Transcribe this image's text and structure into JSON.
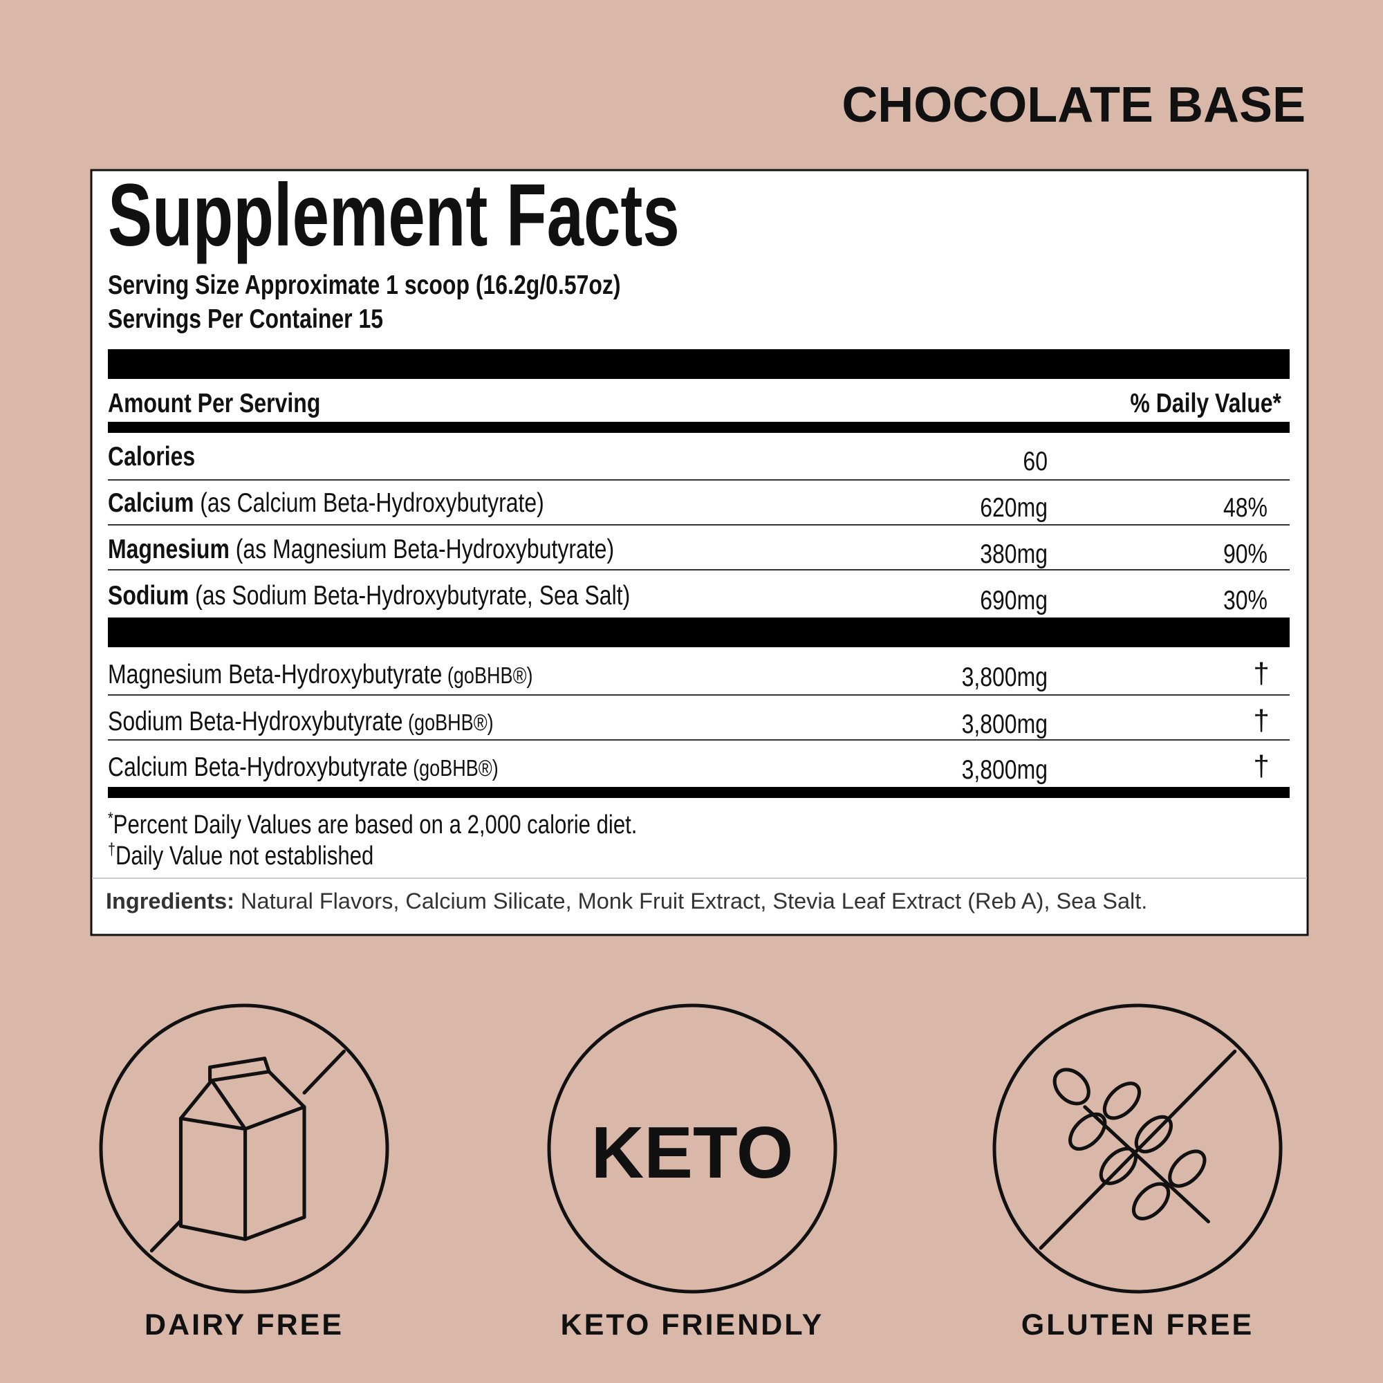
{
  "header": {
    "title": "CHOCOLATE BASE"
  },
  "facts": {
    "title": "Supplement Facts",
    "serving_size": "Serving Size Approximate 1 scoop (16.2g/0.57oz)",
    "servings": "Servings Per Container 15",
    "amount_header": "Amount Per Serving",
    "dv_header": "% Daily Value*",
    "rows": [
      {
        "name": "Calories",
        "amount": "60"
      },
      {
        "name": "Calcium",
        "detail": "(as Calcium Beta-Hydroxybutyrate)",
        "amount": "620mg",
        "dv": "48%"
      },
      {
        "name": "Magnesium",
        "detail": "(as Magnesium Beta-Hydroxybutyrate)",
        "amount": "380mg",
        "dv": "90%"
      },
      {
        "name": "Sodium",
        "detail": "(as Sodium Beta-Hydroxybutyrate, Sea Salt)",
        "amount": "690mg",
        "dv": "30%"
      }
    ],
    "blend_rows": [
      {
        "name": "Magnesium Beta-Hydroxybutyrate",
        "mark": "(goBHB®)",
        "amount": "3,800mg",
        "dv": "†"
      },
      {
        "name": "Sodium Beta-Hydroxybutyrate",
        "mark": "(goBHB®)",
        "amount": "3,800mg",
        "dv": "†"
      },
      {
        "name": "Calcium Beta-Hydroxybutyrate",
        "mark": "(goBHB®)",
        "amount": "3,800mg",
        "dv": "†"
      }
    ],
    "footnotes": [
      {
        "symbol": "*",
        "text": "Percent Daily Values are based on a 2,000 calorie diet."
      },
      {
        "symbol": "†",
        "text": "Daily Value not established"
      }
    ],
    "ingredients_label": "Ingredients:",
    "ingredients": "Natural Flavors, Calcium Silicate, Monk Fruit Extract, Stevia Leaf Extract (Reb A), Sea Salt."
  },
  "badges": [
    {
      "label": "DAIRY FREE"
    },
    {
      "icon_text": "KETO",
      "label": "KETO FRIENDLY"
    },
    {
      "label": "GLUTEN FREE"
    }
  ]
}
